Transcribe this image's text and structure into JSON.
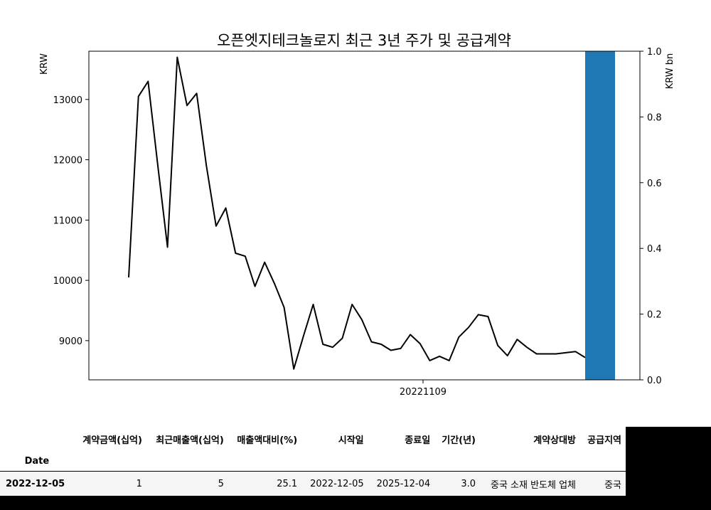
{
  "chart_data": {
    "type": "line",
    "title": "오픈엣지테크놀로지 최근 3년 주가 및 공급계약",
    "xlabel": "",
    "ylabel": "KRW",
    "y2label": "KRW bn",
    "ylim": [
      8350,
      13800
    ],
    "y2lim": [
      0,
      1.0
    ],
    "yticks": [
      9000,
      10000,
      11000,
      12000,
      13000
    ],
    "y2ticks": [
      "0.0",
      "0.2",
      "0.4",
      "0.6",
      "0.8",
      "1.0"
    ],
    "xtick_label": "20221109",
    "series": [
      {
        "type": "line",
        "color": "#000000",
        "values": [
          10050,
          13050,
          13300,
          11900,
          10550,
          13700,
          12900,
          13100,
          11900,
          10900,
          11200,
          10450,
          10400,
          9900,
          10300,
          9950,
          9550,
          8530,
          9080,
          9600,
          8940,
          8890,
          9040,
          9600,
          9350,
          8980,
          8940,
          8840,
          8870,
          9100,
          8950,
          8670,
          8740,
          8670,
          9060,
          9220,
          9430,
          9400,
          8920,
          8750,
          9020,
          8890,
          8780,
          8780,
          8780,
          8800,
          8820,
          8720
        ]
      },
      {
        "type": "bar",
        "color": "#1f77b4",
        "category": "2022-12-05",
        "value": 1.0
      }
    ]
  },
  "table": {
    "columns": [
      "계약금액(십억)",
      "최근매출액(십억)",
      "매출액대비(%)",
      "시작일",
      "종료일",
      "기간(년)",
      "계약상대방",
      "공급지역"
    ],
    "index_name": "Date",
    "rows": [
      {
        "index": "2022-12-05",
        "cells": [
          "1",
          "5",
          "25.1",
          "2022-12-05",
          "2025-12-04",
          "3.0",
          "중국 소재 반도체 업체",
          "중국"
        ]
      }
    ]
  }
}
